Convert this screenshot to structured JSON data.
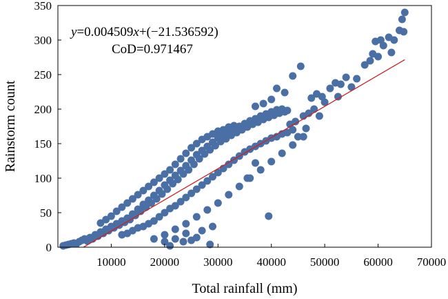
{
  "chart_data": {
    "type": "scatter",
    "xlabel": "Total rainfall (mm)",
    "ylabel": "Rainstorm count",
    "xlim": [
      0,
      70000
    ],
    "ylim": [
      0,
      350
    ],
    "xticks": [
      10000,
      20000,
      30000,
      40000,
      50000,
      60000,
      70000
    ],
    "xtick_labels": [
      "10000",
      "20000",
      "30000",
      "40000",
      "50000",
      "60000",
      "70000"
    ],
    "yticks": [
      0,
      50,
      100,
      150,
      200,
      250,
      300,
      350
    ],
    "ytick_labels": [
      "0",
      "50",
      "100",
      "150",
      "200",
      "250",
      "300",
      "350"
    ],
    "grid": false,
    "colors": {
      "points": "#4a6fa5",
      "fit_line": "#cc2222"
    },
    "fit": {
      "slope": 0.004509,
      "intercept": -21.536592,
      "x_range": [
        4800,
        65000
      ],
      "equation_prefix": "y",
      "equation_mid": "=0.004509",
      "equation_var": "x",
      "equation_suffix": "+(−21.536592)",
      "cod_label": "CoD=0.971467"
    },
    "points": [
      [
        1000,
        2
      ],
      [
        1500,
        3
      ],
      [
        2000,
        4
      ],
      [
        2500,
        5
      ],
      [
        3000,
        6
      ],
      [
        3500,
        5
      ],
      [
        4000,
        8
      ],
      [
        4500,
        10
      ],
      [
        5000,
        12
      ],
      [
        5500,
        9
      ],
      [
        6000,
        14
      ],
      [
        6500,
        12
      ],
      [
        7000,
        18
      ],
      [
        7500,
        16
      ],
      [
        8000,
        22
      ],
      [
        8500,
        20
      ],
      [
        9000,
        26
      ],
      [
        9500,
        24
      ],
      [
        10000,
        30
      ],
      [
        10500,
        28
      ],
      [
        11000,
        34
      ],
      [
        11500,
        32
      ],
      [
        12000,
        38
      ],
      [
        12500,
        36
      ],
      [
        13000,
        42
      ],
      [
        13500,
        40
      ],
      [
        14000,
        48
      ],
      [
        14500,
        46
      ],
      [
        15000,
        55
      ],
      [
        15500,
        52
      ],
      [
        16000,
        62
      ],
      [
        16500,
        58
      ],
      [
        17000,
        68
      ],
      [
        17500,
        64
      ],
      [
        18000,
        75
      ],
      [
        18500,
        70
      ],
      [
        19000,
        82
      ],
      [
        19500,
        77
      ],
      [
        20000,
        90
      ],
      [
        20500,
        84
      ],
      [
        21000,
        97
      ],
      [
        21500,
        92
      ],
      [
        22000,
        104
      ],
      [
        22500,
        98
      ],
      [
        23000,
        111
      ],
      [
        23500,
        106
      ],
      [
        24000,
        118
      ],
      [
        24500,
        112
      ],
      [
        25000,
        126
      ],
      [
        25500,
        120
      ],
      [
        26000,
        134
      ],
      [
        26500,
        128
      ],
      [
        27000,
        140
      ],
      [
        27500,
        135
      ],
      [
        28000,
        146
      ],
      [
        28500,
        141
      ],
      [
        29000,
        152
      ],
      [
        29500,
        147
      ],
      [
        30000,
        158
      ],
      [
        30500,
        153
      ],
      [
        31000,
        162
      ],
      [
        31500,
        157
      ],
      [
        32000,
        167
      ],
      [
        32500,
        162
      ],
      [
        33000,
        171
      ],
      [
        33500,
        166
      ],
      [
        34000,
        175
      ],
      [
        34500,
        170
      ],
      [
        35000,
        179
      ],
      [
        35500,
        174
      ],
      [
        36000,
        183
      ],
      [
        36500,
        178
      ],
      [
        37000,
        186
      ],
      [
        37500,
        181
      ],
      [
        38000,
        190
      ],
      [
        38500,
        185
      ],
      [
        39000,
        193
      ],
      [
        39500,
        188
      ],
      [
        40000,
        196
      ],
      [
        40500,
        191
      ],
      [
        41000,
        199
      ],
      [
        41500,
        194
      ],
      [
        42000,
        200
      ],
      [
        42500,
        196
      ],
      [
        43000,
        198
      ],
      [
        12000,
        18
      ],
      [
        13000,
        20
      ],
      [
        14000,
        24
      ],
      [
        15000,
        28
      ],
      [
        16000,
        30
      ],
      [
        17000,
        34
      ],
      [
        18000,
        38
      ],
      [
        19000,
        44
      ],
      [
        20000,
        50
      ],
      [
        21000,
        56
      ],
      [
        22000,
        60
      ],
      [
        23000,
        66
      ],
      [
        24000,
        72
      ],
      [
        25000,
        78
      ],
      [
        26000,
        84
      ],
      [
        27000,
        90
      ],
      [
        28000,
        96
      ],
      [
        29000,
        102
      ],
      [
        30000,
        108
      ],
      [
        31000,
        114
      ],
      [
        32000,
        120
      ],
      [
        33000,
        126
      ],
      [
        34000,
        132
      ],
      [
        35000,
        138
      ],
      [
        36000,
        142
      ],
      [
        37000,
        146
      ],
      [
        38000,
        150
      ],
      [
        39000,
        154
      ],
      [
        40000,
        158
      ],
      [
        41000,
        160
      ],
      [
        42000,
        164
      ],
      [
        43000,
        166
      ],
      [
        44000,
        170
      ],
      [
        8000,
        35
      ],
      [
        9000,
        40
      ],
      [
        10000,
        45
      ],
      [
        11000,
        52
      ],
      [
        12000,
        58
      ],
      [
        13000,
        64
      ],
      [
        14000,
        70
      ],
      [
        15000,
        76
      ],
      [
        16000,
        82
      ],
      [
        17000,
        88
      ],
      [
        18000,
        94
      ],
      [
        19000,
        100
      ],
      [
        20000,
        106
      ],
      [
        21000,
        112
      ],
      [
        22000,
        120
      ],
      [
        23000,
        128
      ],
      [
        24000,
        136
      ],
      [
        25000,
        144
      ],
      [
        26000,
        150
      ],
      [
        27000,
        156
      ],
      [
        28000,
        160
      ],
      [
        29000,
        164
      ],
      [
        30000,
        168
      ],
      [
        31000,
        170
      ],
      [
        32000,
        174
      ],
      [
        33000,
        176
      ],
      [
        18000,
        12
      ],
      [
        20000,
        18
      ],
      [
        22000,
        26
      ],
      [
        24000,
        34
      ],
      [
        26000,
        44
      ],
      [
        28000,
        54
      ],
      [
        30000,
        64
      ],
      [
        32000,
        76
      ],
      [
        34000,
        88
      ],
      [
        36000,
        100
      ],
      [
        38000,
        112
      ],
      [
        40000,
        124
      ],
      [
        42000,
        136
      ],
      [
        44000,
        148
      ],
      [
        46000,
        160
      ],
      [
        21000,
        2
      ],
      [
        23500,
        8
      ],
      [
        26000,
        14
      ],
      [
        28500,
        4
      ],
      [
        27000,
        24
      ],
      [
        29000,
        30
      ],
      [
        24000,
        20
      ],
      [
        22000,
        12
      ],
      [
        25000,
        10
      ],
      [
        20000,
        8
      ],
      [
        39500,
        45
      ],
      [
        35500,
        100
      ],
      [
        37000,
        122
      ],
      [
        45500,
        262
      ],
      [
        44000,
        248
      ],
      [
        41000,
        230
      ],
      [
        42500,
        224
      ],
      [
        40000,
        214
      ],
      [
        38500,
        208
      ],
      [
        37000,
        204
      ],
      [
        46000,
        190
      ],
      [
        47000,
        194
      ],
      [
        48000,
        200
      ],
      [
        47500,
        216
      ],
      [
        48500,
        222
      ],
      [
        49500,
        218
      ],
      [
        51000,
        230
      ],
      [
        52000,
        238
      ],
      [
        53000,
        236
      ],
      [
        54000,
        246
      ],
      [
        55000,
        232
      ],
      [
        56000,
        244
      ],
      [
        45000,
        160
      ],
      [
        46500,
        172
      ],
      [
        44500,
        182
      ],
      [
        43500,
        178
      ],
      [
        49000,
        190
      ],
      [
        50000,
        210
      ],
      [
        52500,
        218
      ],
      [
        57500,
        264
      ],
      [
        58500,
        270
      ],
      [
        59000,
        280
      ],
      [
        60000,
        276
      ],
      [
        61000,
        292
      ],
      [
        62000,
        304
      ],
      [
        63000,
        300
      ],
      [
        62500,
        282
      ],
      [
        60500,
        300
      ],
      [
        59500,
        298
      ],
      [
        64000,
        314
      ],
      [
        64500,
        330
      ],
      [
        65000,
        340
      ],
      [
        64800,
        312
      ]
    ]
  }
}
